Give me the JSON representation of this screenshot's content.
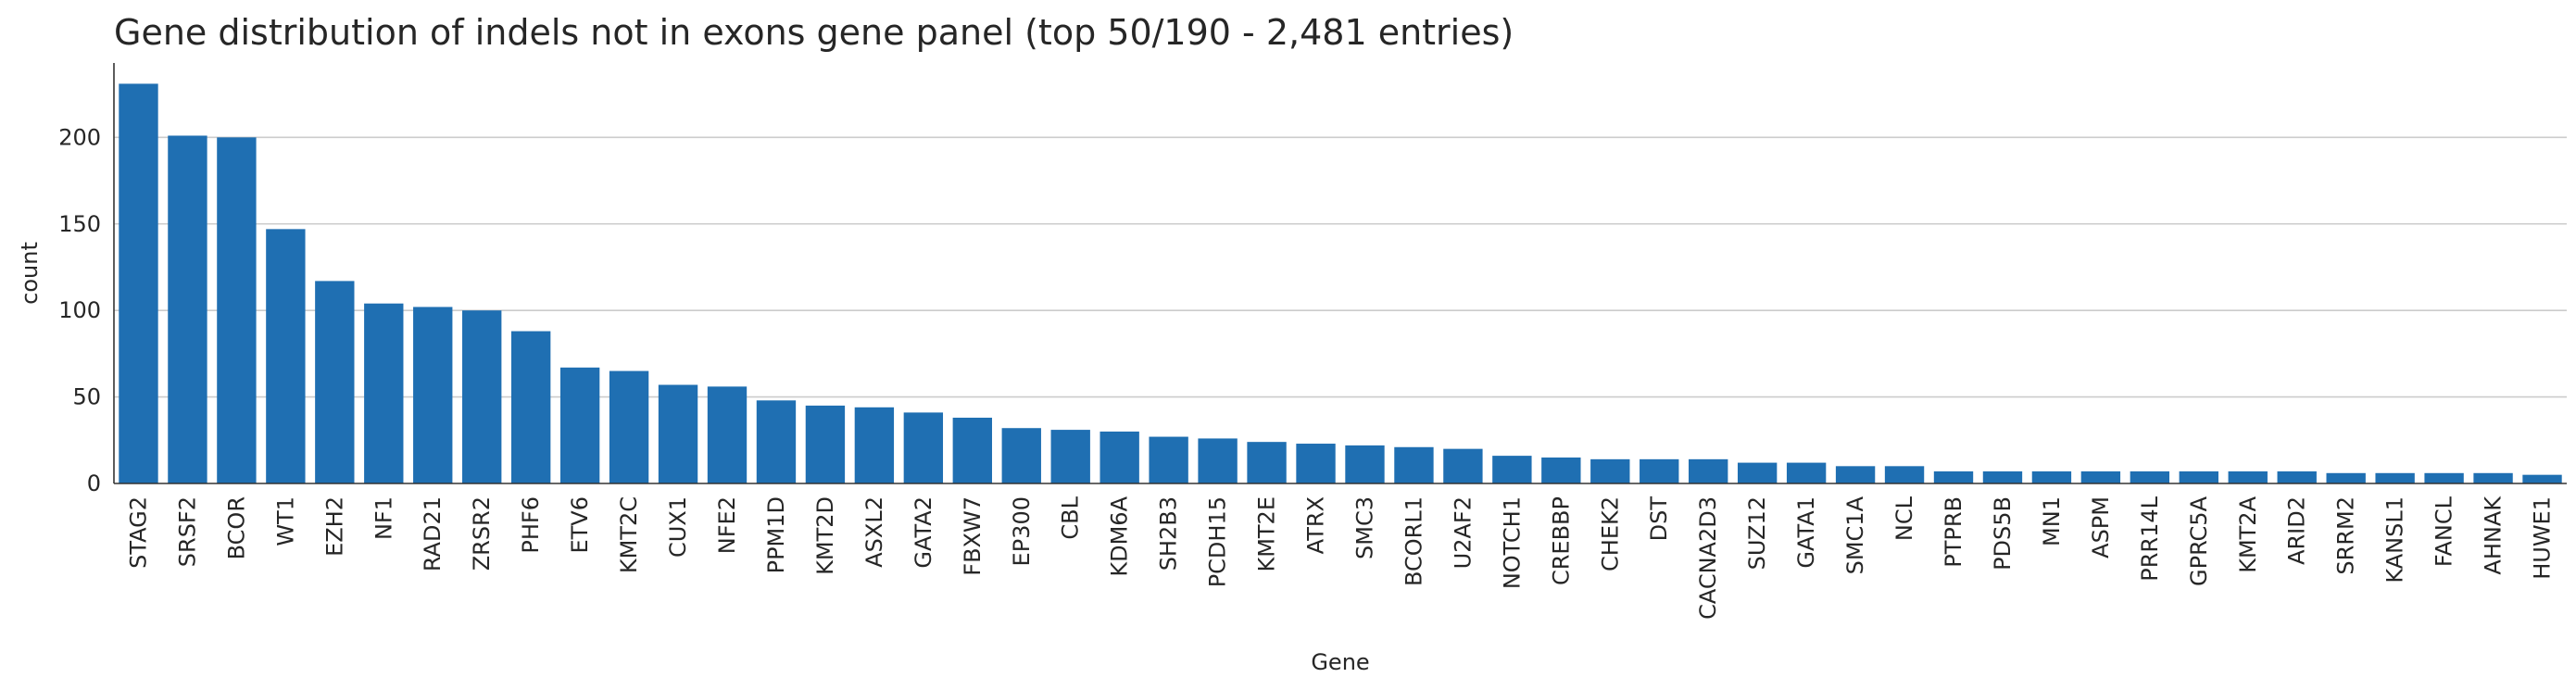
{
  "chart_data": {
    "type": "bar",
    "title": "Gene distribution of indels not in exons gene panel (top 50/190 - 2,481 entries)",
    "xlabel": "Gene",
    "ylabel": "count",
    "ylim": [
      0,
      243
    ],
    "yticks": [
      0,
      50,
      100,
      150,
      200
    ],
    "grid": "horizontal",
    "bar_color": "#1f6fb2",
    "categories": [
      "STAG2",
      "SRSF2",
      "BCOR",
      "WT1",
      "EZH2",
      "NF1",
      "RAD21",
      "ZRSR2",
      "PHF6",
      "ETV6",
      "KMT2C",
      "CUX1",
      "NFE2",
      "PPM1D",
      "KMT2D",
      "ASXL2",
      "GATA2",
      "FBXW7",
      "EP300",
      "CBL",
      "KDM6A",
      "SH2B3",
      "PCDH15",
      "KMT2E",
      "ATRX",
      "SMC3",
      "BCORL1",
      "U2AF2",
      "NOTCH1",
      "CREBBP",
      "CHEK2",
      "DST",
      "CACNA2D3",
      "SUZ12",
      "GATA1",
      "SMC1A",
      "NCL",
      "PTPRB",
      "PDS5B",
      "MN1",
      "ASPM",
      "PRR14L",
      "GPRC5A",
      "KMT2A",
      "ARID2",
      "SRRM2",
      "KANSL1",
      "FANCL",
      "AHNAK",
      "HUWE1"
    ],
    "values": [
      231,
      201,
      200,
      147,
      117,
      104,
      102,
      100,
      88,
      67,
      65,
      57,
      56,
      48,
      45,
      44,
      41,
      38,
      32,
      31,
      30,
      27,
      26,
      24,
      23,
      22,
      21,
      20,
      16,
      15,
      14,
      14,
      14,
      12,
      12,
      10,
      10,
      7,
      7,
      7,
      7,
      7,
      7,
      7,
      7,
      6,
      6,
      6,
      6,
      5
    ]
  }
}
